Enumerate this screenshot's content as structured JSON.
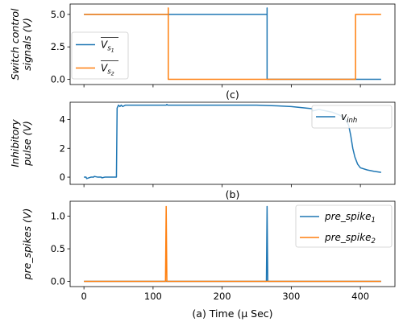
{
  "chart_data": [
    {
      "type": "line",
      "panel": "top",
      "caption": "(c)",
      "ylabel_lines": [
        "Switch control",
        "signals (V)"
      ],
      "xlim": [
        -20,
        450
      ],
      "ylim": [
        -0.4,
        5.8
      ],
      "yticks": [
        0,
        2.5,
        5.0
      ],
      "ytick_labels": [
        "0.0",
        "2.5",
        "5.0"
      ],
      "legend_position": "center-left",
      "series": [
        {
          "name_main": "V",
          "name_sub": "s",
          "name_subsub": "1",
          "color": "#1f77b4",
          "x": [
            0,
            265,
            265,
            265,
            265,
            265,
            430
          ],
          "y": [
            5,
            5,
            5.5,
            0,
            0.1,
            0,
            0
          ]
        },
        {
          "name_main": "V",
          "name_sub": "s",
          "name_subsub": "2",
          "color": "#ff7f0e",
          "x": [
            0,
            122,
            122,
            122,
            393,
            393,
            430
          ],
          "y": [
            5,
            5,
            5.5,
            0,
            0,
            5,
            5
          ]
        }
      ]
    },
    {
      "type": "line",
      "panel": "middle",
      "caption": "(b)",
      "ylabel_lines": [
        "Inhibitory",
        "pulse (V)"
      ],
      "xlim": [
        -20,
        450
      ],
      "ylim": [
        -0.5,
        5.2
      ],
      "yticks": [
        0,
        2,
        4
      ],
      "ytick_labels": [
        "0",
        "2",
        "4"
      ],
      "legend_position": "upper-right",
      "series": [
        {
          "name_main": "v",
          "name_sub": "inh",
          "name_subsub": "",
          "color": "#1f77b4",
          "x": [
            0,
            3,
            4,
            10,
            14,
            15,
            20,
            25,
            26,
            30,
            40,
            47,
            48,
            50,
            52,
            54,
            56,
            60,
            80,
            100,
            119,
            120,
            121,
            150,
            200,
            250,
            280,
            300,
            320,
            330,
            331,
            340,
            350,
            360,
            370,
            375,
            380,
            383,
            386,
            389,
            392,
            396,
            400,
            410,
            420,
            430
          ],
          "y": [
            0,
            0,
            -0.1,
            0,
            0,
            0.05,
            0,
            0,
            -0.05,
            0,
            0,
            0,
            4.8,
            5.0,
            4.9,
            5.0,
            4.9,
            5.0,
            5.0,
            5.0,
            5.0,
            5.05,
            5.0,
            5.0,
            5.0,
            5.0,
            4.95,
            4.9,
            4.8,
            4.75,
            4.6,
            4.7,
            4.6,
            4.5,
            4.3,
            4.15,
            3.9,
            3.6,
            2.9,
            2.0,
            1.4,
            0.9,
            0.65,
            0.5,
            0.4,
            0.33
          ]
        }
      ]
    },
    {
      "type": "line",
      "panel": "bottom",
      "caption": "",
      "ylabel_lines": [
        "pre_spikes (V)"
      ],
      "xlabel": "(a) Time (μ Sec)",
      "xlim": [
        -20,
        450
      ],
      "ylim": [
        -0.08,
        1.23
      ],
      "yticks": [
        0,
        0.5,
        1.0
      ],
      "ytick_labels": [
        "0.0",
        "0.5",
        "1.0"
      ],
      "xticks": [
        0,
        100,
        200,
        300,
        400
      ],
      "xtick_labels": [
        "0",
        "100",
        "200",
        "300",
        "400"
      ],
      "legend_position": "upper-right",
      "series": [
        {
          "name_main": "pre_spike",
          "name_sub": "1",
          "name_subsub": "",
          "color": "#1f77b4",
          "x": [
            0,
            264,
            265,
            266,
            430
          ],
          "y": [
            0,
            0,
            1.15,
            0,
            0
          ]
        },
        {
          "name_main": "pre_spike",
          "name_sub": "2",
          "name_subsub": "",
          "color": "#ff7f0e",
          "x": [
            0,
            118,
            119,
            120,
            430
          ],
          "y": [
            0,
            0,
            1.15,
            0,
            0
          ]
        }
      ]
    }
  ]
}
